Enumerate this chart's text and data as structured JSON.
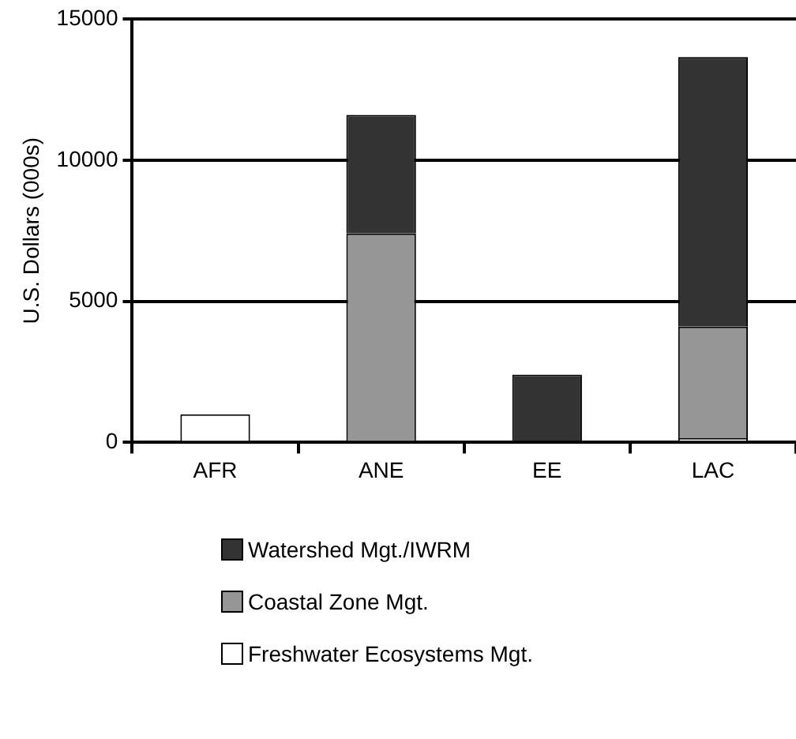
{
  "chart_data": {
    "type": "bar",
    "ylabel": "U.S. Dollars (000s)",
    "categories": [
      "AFR",
      "ANE",
      "EE",
      "LAC"
    ],
    "stacked": true,
    "series": [
      {
        "name": "Freshwater Ecosystems Mgt.",
        "color": "#ffffff",
        "values": [
          1000,
          0,
          0,
          150
        ]
      },
      {
        "name": "Coastal Zone Mgt.",
        "color": "#969696",
        "values": [
          0,
          7400,
          0,
          3950
        ]
      },
      {
        "name": "Watershed Mgt./IWRM",
        "color": "#333333",
        "values": [
          0,
          4200,
          2400,
          9550
        ]
      }
    ],
    "ylim": [
      0,
      15000
    ],
    "yticks": [
      0,
      5000,
      10000,
      15000
    ],
    "grid": "y",
    "legend": "bottom"
  }
}
